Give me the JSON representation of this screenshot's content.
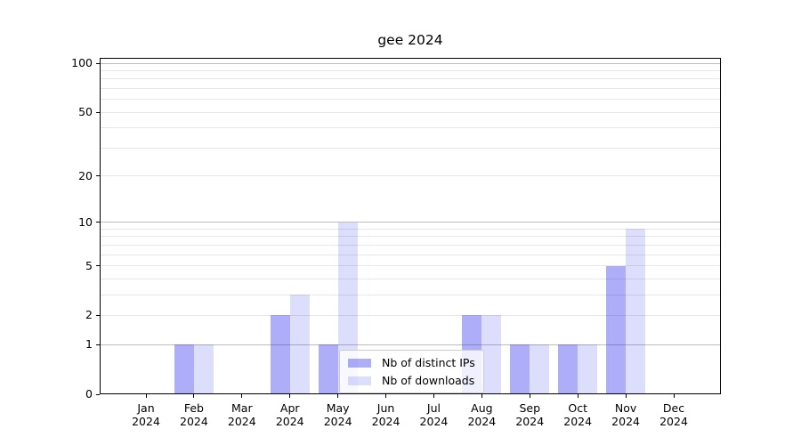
{
  "figure": {
    "background": "#ffffff"
  },
  "chart_data": {
    "type": "bar",
    "title": "gee 2024",
    "categories": [
      {
        "month": "Jan",
        "year": "2024"
      },
      {
        "month": "Feb",
        "year": "2024"
      },
      {
        "month": "Mar",
        "year": "2024"
      },
      {
        "month": "Apr",
        "year": "2024"
      },
      {
        "month": "May",
        "year": "2024"
      },
      {
        "month": "Jun",
        "year": "2024"
      },
      {
        "month": "Jul",
        "year": "2024"
      },
      {
        "month": "Aug",
        "year": "2024"
      },
      {
        "month": "Sep",
        "year": "2024"
      },
      {
        "month": "Oct",
        "year": "2024"
      },
      {
        "month": "Nov",
        "year": "2024"
      },
      {
        "month": "Dec",
        "year": "2024"
      }
    ],
    "series": [
      {
        "name": "Nb of distinct IPs",
        "color": "rgba(30,30,235,0.36)",
        "values": [
          0,
          1,
          0,
          2,
          1,
          0,
          0,
          2,
          1,
          1,
          5,
          0
        ]
      },
      {
        "name": "Nb of downloads",
        "color": "rgba(30,30,235,0.15)",
        "values": [
          0,
          1,
          0,
          3,
          10,
          0,
          0,
          2,
          1,
          1,
          9,
          0
        ]
      }
    ],
    "yscale": "log1p",
    "ylim": [
      0,
      107
    ],
    "ytick_values": [
      0,
      1,
      2,
      5,
      10,
      20,
      50,
      100
    ],
    "major_grid_values": [
      1,
      10,
      100
    ],
    "minor_grid_values": [
      2,
      3,
      4,
      5,
      6,
      7,
      8,
      9,
      20,
      30,
      40,
      50,
      60,
      70,
      80,
      90
    ],
    "grid": {
      "major_color": "#bdbdbd",
      "minor_color": "#e7e7e7"
    },
    "legend": {
      "position": "lower center"
    }
  }
}
